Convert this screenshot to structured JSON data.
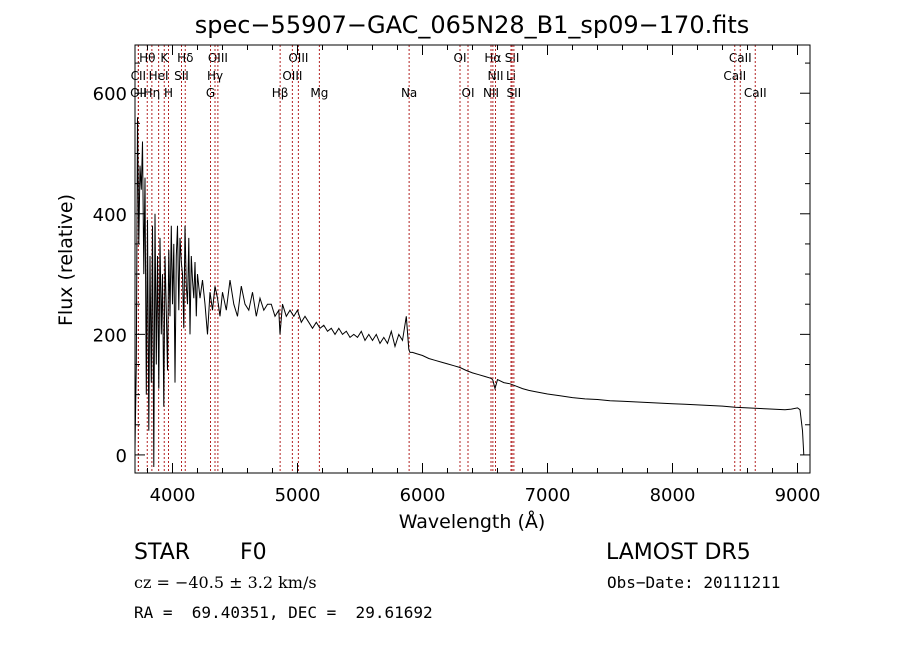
{
  "chart_data": {
    "type": "line",
    "title": "spec−55907−GAC_065N28_B1_sp09−170.fits",
    "xlabel": "Wavelength (Å)",
    "ylabel": "Flux (relative)",
    "xlim": [
      3700,
      9100
    ],
    "ylim": [
      -30,
      680
    ],
    "xticks": [
      4000,
      5000,
      6000,
      7000,
      8000,
      9000
    ],
    "yticks": [
      0,
      200,
      400,
      600
    ],
    "grid": false,
    "legend": "none",
    "series": [
      {
        "x": [
          3700,
          3710,
          3720,
          3730,
          3740,
          3750,
          3760,
          3770,
          3780,
          3790,
          3800,
          3810,
          3820,
          3830,
          3840,
          3850,
          3860,
          3870,
          3880,
          3890,
          3900,
          3910,
          3920,
          3930,
          3940,
          3950,
          3960,
          3970,
          3980,
          3990,
          4000,
          4010,
          4020,
          4030,
          4040,
          4050,
          4060,
          4070,
          4080,
          4090,
          4100,
          4110,
          4120,
          4130,
          4140,
          4150,
          4160,
          4170,
          4180,
          4190,
          4200,
          4220,
          4240,
          4260,
          4280,
          4300,
          4320,
          4340,
          4360,
          4380,
          4400,
          4430,
          4460,
          4490,
          4520,
          4550,
          4580,
          4610,
          4640,
          4670,
          4700,
          4730,
          4760,
          4790,
          4820,
          4850,
          4860,
          4880,
          4910,
          4940,
          4970,
          5000,
          5030,
          5060,
          5090,
          5120,
          5150,
          5180,
          5210,
          5240,
          5270,
          5300,
          5330,
          5360,
          5390,
          5420,
          5450,
          5480,
          5510,
          5540,
          5570,
          5600,
          5630,
          5660,
          5690,
          5720,
          5750,
          5780,
          5810,
          5840,
          5870,
          5890,
          5900,
          5920,
          5950,
          6000,
          6050,
          6100,
          6150,
          6200,
          6250,
          6300,
          6350,
          6400,
          6450,
          6500,
          6550,
          6563,
          6580,
          6600,
          6650,
          6700,
          6750,
          6800,
          6850,
          6900,
          7000,
          7100,
          7200,
          7300,
          7400,
          7500,
          7600,
          7700,
          7800,
          7900,
          8000,
          8100,
          8200,
          8300,
          8400,
          8500,
          8600,
          8700,
          8800,
          8900,
          8950,
          9000,
          9020,
          9040,
          9050
        ],
        "y": [
          10,
          150,
          560,
          350,
          480,
          440,
          520,
          300,
          460,
          100,
          390,
          40,
          330,
          120,
          380,
          -20,
          400,
          150,
          330,
          110,
          360,
          200,
          300,
          80,
          330,
          240,
          140,
          340,
          230,
          380,
          250,
          350,
          120,
          330,
          380,
          240,
          360,
          320,
          300,
          210,
          380,
          280,
          250,
          360,
          200,
          330,
          290,
          260,
          320,
          230,
          300,
          260,
          290,
          250,
          200,
          270,
          240,
          280,
          260,
          230,
          270,
          240,
          290,
          250,
          230,
          280,
          250,
          240,
          270,
          230,
          260,
          240,
          250,
          250,
          230,
          240,
          200,
          250,
          230,
          240,
          230,
          240,
          220,
          230,
          220,
          210,
          220,
          210,
          215,
          205,
          210,
          200,
          210,
          200,
          205,
          195,
          200,
          195,
          205,
          190,
          200,
          190,
          200,
          185,
          195,
          185,
          205,
          180,
          200,
          190,
          230,
          175,
          170,
          170,
          168,
          165,
          160,
          157,
          154,
          151,
          148,
          145,
          140,
          136,
          133,
          130,
          127,
          124,
          110,
          125,
          120,
          118,
          114,
          110,
          107,
          105,
          101,
          98,
          95,
          93,
          92,
          90,
          89,
          88,
          87,
          86,
          85,
          84,
          83,
          82,
          81,
          79,
          78,
          77,
          76,
          75,
          76,
          78,
          75,
          40,
          0
        ]
      }
    ],
    "lines": [
      {
        "name": "Hθ",
        "x": 3798,
        "row": 0
      },
      {
        "name": "K",
        "x": 3934,
        "row": 0
      },
      {
        "name": "Hδ",
        "x": 4102,
        "row": 0
      },
      {
        "name": "OIII",
        "x": 4363,
        "row": 0
      },
      {
        "name": "OIII",
        "x": 5007,
        "row": 0
      },
      {
        "name": "OI",
        "x": 6300,
        "row": 0
      },
      {
        "name": "Hα",
        "x": 6563,
        "row": 0
      },
      {
        "name": "SII",
        "x": 6717,
        "row": 0
      },
      {
        "name": "CaII",
        "x": 8542,
        "row": 0
      },
      {
        "name": "CII",
        "x": 3727,
        "row": 1
      },
      {
        "name": "HeI",
        "x": 3889,
        "row": 1
      },
      {
        "name": "SII",
        "x": 4072,
        "row": 1
      },
      {
        "name": "Hγ",
        "x": 4340,
        "row": 1
      },
      {
        "name": "OIII",
        "x": 4959,
        "row": 1
      },
      {
        "name": "NII",
        "x": 6584,
        "row": 1
      },
      {
        "name": "Li",
        "x": 6708,
        "row": 1
      },
      {
        "name": "CaII",
        "x": 8498,
        "row": 1
      },
      {
        "name": "OII",
        "x": 3727,
        "row": 2
      },
      {
        "name": "Hη",
        "x": 3835,
        "row": 2
      },
      {
        "name": "H",
        "x": 3968,
        "row": 2
      },
      {
        "name": "G",
        "x": 4304,
        "row": 2
      },
      {
        "name": "Hβ",
        "x": 4861,
        "row": 2
      },
      {
        "name": "Mg",
        "x": 5175,
        "row": 2
      },
      {
        "name": "Na",
        "x": 5893,
        "row": 2
      },
      {
        "name": "OI",
        "x": 6364,
        "row": 2
      },
      {
        "name": "NII",
        "x": 6548,
        "row": 2
      },
      {
        "name": "SII",
        "x": 6731,
        "row": 2
      },
      {
        "name": "CaII",
        "x": 8662,
        "row": 2
      }
    ]
  },
  "info": {
    "class": "STAR",
    "subclass": "F0",
    "survey": "LAMOST DR5",
    "cz": "cz = −40.5 ± 3.2 km/s",
    "obs_date": "Obs−Date: 20111211",
    "coords": "RA =  69.40351, DEC =  29.61692"
  },
  "colors": {
    "axis": "#000000",
    "spectrum": "#000000",
    "lines": "#b22222"
  }
}
